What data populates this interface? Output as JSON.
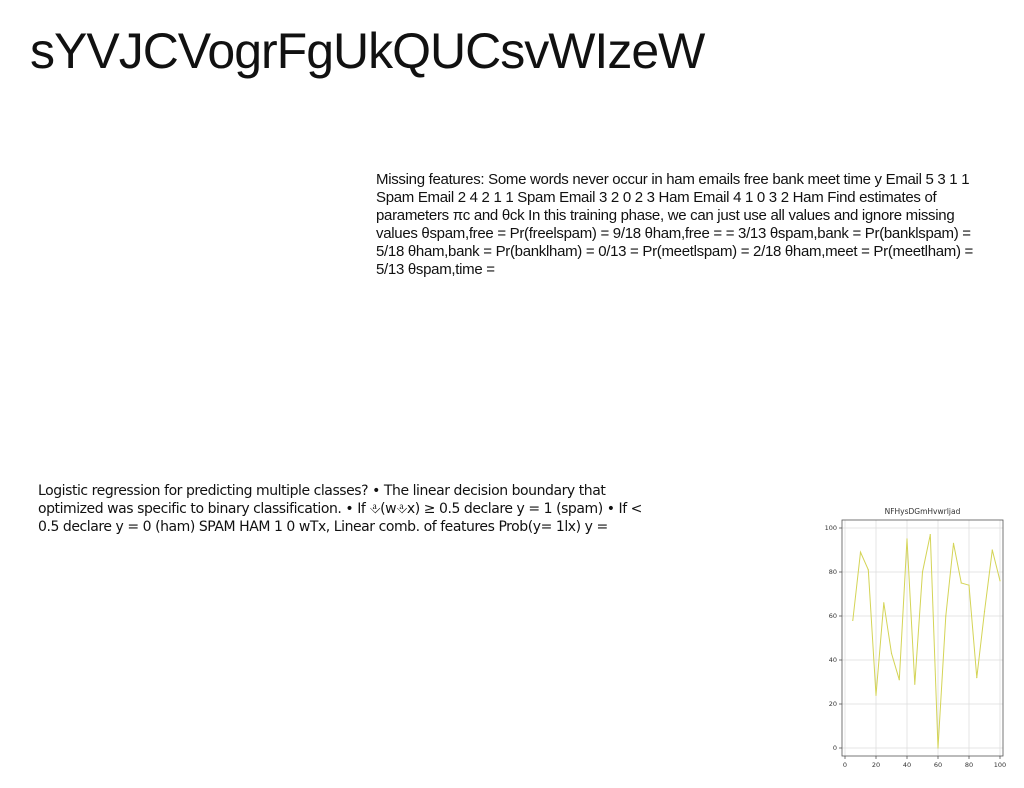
{
  "title": "sYVJCVogrFgUkQUCsvWIzeW",
  "paragraph_right": "Missing features: Some words never occur in ham emails free bank meet time y Email 5 3 1 1 Spam Email 2 4 2 1 1 Spam Email 3 2 0 2 3 Ham Email 4 1 0 3 2 Ham Find estimates of parameters πc and θck In this training phase, we can just use all values and ignore missing values θspam,free = Pr(freelspam) = 9/18 θham,free = = 3/13 θspam,bank = Pr(banklspam) = 5/18 θham,bank = Pr(banklham) = 0/13 = Pr(meetlspam) = 2/18 θham,meet = Pr(meetlham) = 5/13 θspam,time =",
  "paragraph_left": "Logistic regression for predicting multiple classes? • The linear decision boundary that optimized was specific to binary classification. • If ⎀(w⎀x) ≥ 0.5 declare y = 1 (spam) • If < 0.5 declare y = 0 (ham) SPAM HAM 1 0 wTx, Linear comb. of features Prob(y= 1lx) y =",
  "chart_data": {
    "type": "line",
    "title": "NFHysDGmHvwrIjad",
    "xlabel": "",
    "ylabel": "",
    "xlim": [
      0,
      100
    ],
    "ylim": [
      0,
      100
    ],
    "x_ticks": [
      "0",
      "20",
      "40",
      "60",
      "80",
      "100"
    ],
    "y_ticks": [
      "0",
      "20",
      "40",
      "60",
      "80",
      "100"
    ],
    "grid": true,
    "color": "#d4d456",
    "series": [
      {
        "x": [
          5,
          10,
          15,
          20,
          25,
          30,
          35,
          40,
          45,
          50,
          55,
          60,
          65,
          70,
          75,
          80,
          85,
          90,
          95,
          100
        ],
        "values": [
          58,
          89,
          81,
          24,
          66,
          43,
          31,
          95,
          29,
          80,
          97,
          0,
          60,
          93,
          75,
          74,
          32,
          62,
          90,
          76
        ]
      }
    ]
  }
}
